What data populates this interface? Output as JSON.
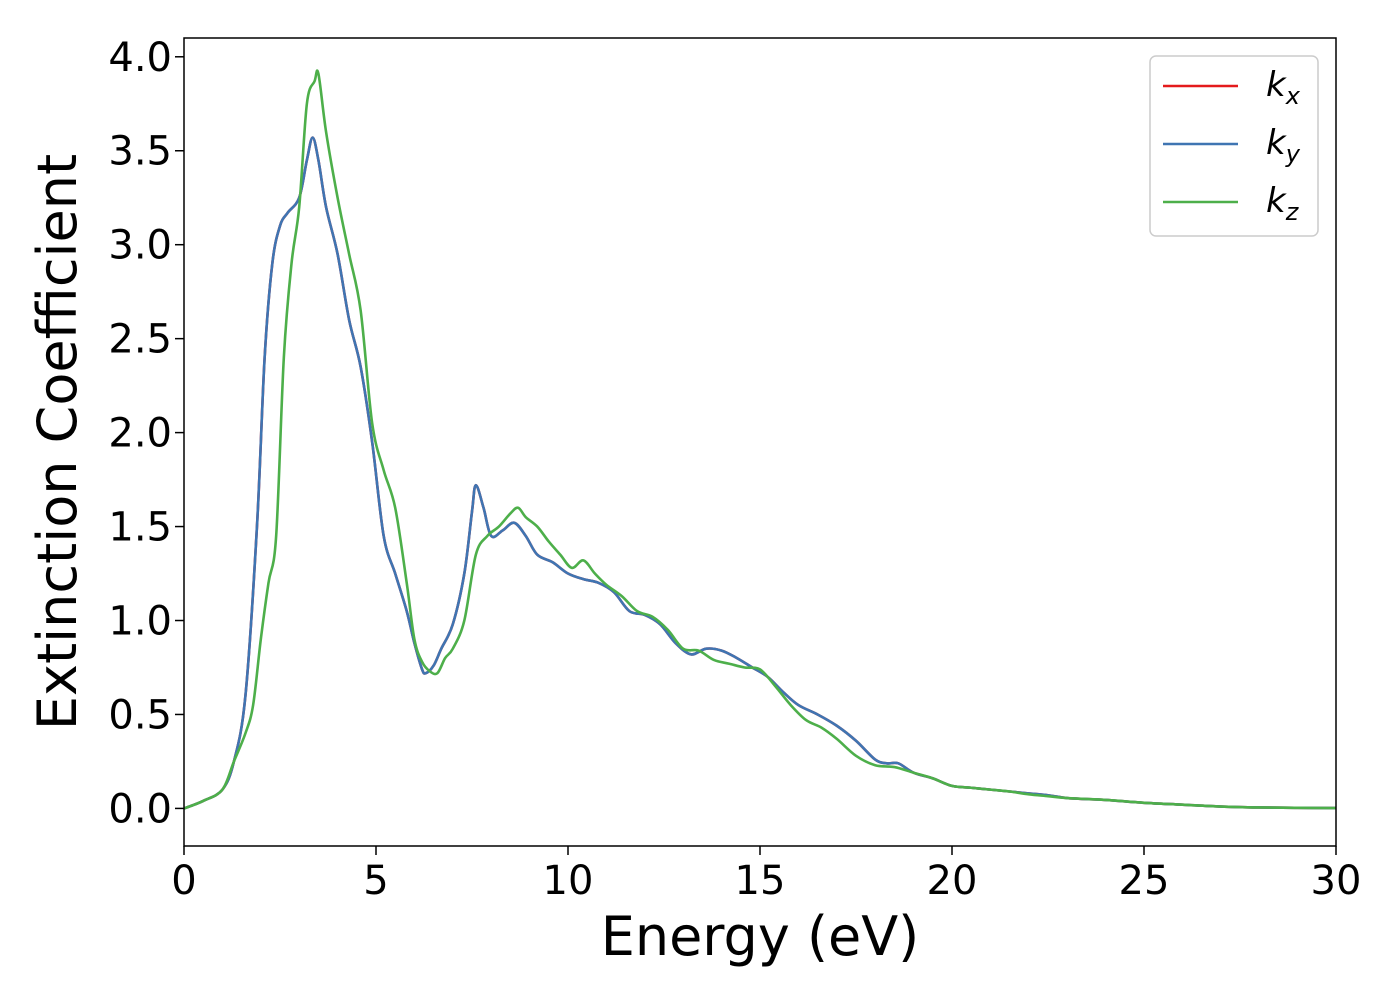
{
  "chart_data": {
    "type": "line",
    "title": "",
    "xlabel": "Energy (eV)",
    "ylabel": "Extinction Coefficient",
    "xlim": [
      0,
      30
    ],
    "ylim": [
      -0.2,
      4.1
    ],
    "xticks": [
      0,
      5,
      10,
      15,
      20,
      25,
      30
    ],
    "yticks": [
      0.0,
      0.5,
      1.0,
      1.5,
      2.0,
      2.5,
      3.0,
      3.5,
      4.0
    ],
    "grid": false,
    "legend_position": "top-right",
    "series": [
      {
        "name": "k_x",
        "legend_main": "k",
        "legend_sub": "x",
        "color": "#e41a1c",
        "x": [
          0,
          0.5,
          1.0,
          1.3,
          1.6,
          1.9,
          2.1,
          2.3,
          2.5,
          2.7,
          3.0,
          3.2,
          3.35,
          3.5,
          3.7,
          4.0,
          4.3,
          4.6,
          4.9,
          5.2,
          5.5,
          5.8,
          6.0,
          6.2,
          6.3,
          6.5,
          6.7,
          7.0,
          7.3,
          7.5,
          7.6,
          7.8,
          8.0,
          8.3,
          8.6,
          8.9,
          9.2,
          9.6,
          10.0,
          10.4,
          10.8,
          11.2,
          11.6,
          12.0,
          12.4,
          12.8,
          13.2,
          13.6,
          14.0,
          14.4,
          14.8,
          15.2,
          15.6,
          16.0,
          16.5,
          17.0,
          17.5,
          18.0,
          18.3,
          18.6,
          19.0,
          19.5,
          20.0,
          20.5,
          21.0,
          21.5,
          22.0,
          22.5,
          23.0,
          23.5,
          24.0,
          25.0,
          26.0,
          27.0,
          28.0,
          29.0,
          30.0
        ],
        "y": [
          0.0,
          0.04,
          0.1,
          0.25,
          0.6,
          1.5,
          2.4,
          2.9,
          3.1,
          3.17,
          3.25,
          3.45,
          3.57,
          3.45,
          3.2,
          2.95,
          2.6,
          2.35,
          1.95,
          1.45,
          1.25,
          1.05,
          0.88,
          0.74,
          0.72,
          0.76,
          0.85,
          0.98,
          1.25,
          1.58,
          1.72,
          1.6,
          1.45,
          1.48,
          1.52,
          1.45,
          1.35,
          1.31,
          1.25,
          1.22,
          1.2,
          1.15,
          1.05,
          1.03,
          0.98,
          0.88,
          0.82,
          0.85,
          0.84,
          0.8,
          0.75,
          0.7,
          0.62,
          0.55,
          0.5,
          0.44,
          0.36,
          0.26,
          0.24,
          0.24,
          0.19,
          0.16,
          0.12,
          0.11,
          0.1,
          0.09,
          0.08,
          0.07,
          0.055,
          0.05,
          0.045,
          0.03,
          0.02,
          0.01,
          0.005,
          0.003,
          0.002
        ]
      },
      {
        "name": "k_y",
        "legend_main": "k",
        "legend_sub": "y",
        "color": "#3f75b2",
        "x": [
          0,
          0.5,
          1.0,
          1.3,
          1.6,
          1.9,
          2.1,
          2.3,
          2.5,
          2.7,
          3.0,
          3.2,
          3.35,
          3.5,
          3.7,
          4.0,
          4.3,
          4.6,
          4.9,
          5.2,
          5.5,
          5.8,
          6.0,
          6.2,
          6.3,
          6.5,
          6.7,
          7.0,
          7.3,
          7.5,
          7.6,
          7.8,
          8.0,
          8.3,
          8.6,
          8.9,
          9.2,
          9.6,
          10.0,
          10.4,
          10.8,
          11.2,
          11.6,
          12.0,
          12.4,
          12.8,
          13.2,
          13.6,
          14.0,
          14.4,
          14.8,
          15.2,
          15.6,
          16.0,
          16.5,
          17.0,
          17.5,
          18.0,
          18.3,
          18.6,
          19.0,
          19.5,
          20.0,
          20.5,
          21.0,
          21.5,
          22.0,
          22.5,
          23.0,
          23.5,
          24.0,
          25.0,
          26.0,
          27.0,
          28.0,
          29.0,
          30.0
        ],
        "y": [
          0.0,
          0.04,
          0.1,
          0.25,
          0.6,
          1.5,
          2.4,
          2.9,
          3.1,
          3.17,
          3.25,
          3.45,
          3.57,
          3.45,
          3.2,
          2.95,
          2.6,
          2.35,
          1.95,
          1.45,
          1.25,
          1.05,
          0.88,
          0.74,
          0.72,
          0.76,
          0.85,
          0.98,
          1.25,
          1.58,
          1.72,
          1.6,
          1.45,
          1.48,
          1.52,
          1.45,
          1.35,
          1.31,
          1.25,
          1.22,
          1.2,
          1.15,
          1.05,
          1.03,
          0.98,
          0.88,
          0.82,
          0.85,
          0.84,
          0.8,
          0.75,
          0.7,
          0.62,
          0.55,
          0.5,
          0.44,
          0.36,
          0.26,
          0.24,
          0.24,
          0.19,
          0.16,
          0.12,
          0.11,
          0.1,
          0.09,
          0.08,
          0.07,
          0.055,
          0.05,
          0.045,
          0.03,
          0.02,
          0.01,
          0.005,
          0.003,
          0.002
        ]
      },
      {
        "name": "k_z",
        "legend_main": "k",
        "legend_sub": "z",
        "color": "#4daf4a",
        "x": [
          0,
          0.5,
          1.0,
          1.3,
          1.6,
          1.8,
          2.0,
          2.2,
          2.4,
          2.6,
          2.8,
          3.0,
          3.2,
          3.4,
          3.5,
          3.7,
          4.0,
          4.3,
          4.6,
          4.9,
          5.2,
          5.5,
          5.8,
          6.0,
          6.2,
          6.4,
          6.6,
          6.8,
          7.0,
          7.3,
          7.6,
          7.9,
          8.2,
          8.5,
          8.7,
          8.9,
          9.2,
          9.5,
          9.8,
          10.1,
          10.4,
          10.7,
          11.0,
          11.4,
          11.8,
          12.2,
          12.6,
          13.0,
          13.4,
          13.8,
          14.2,
          14.6,
          15.0,
          15.4,
          15.8,
          16.2,
          16.6,
          17.0,
          17.5,
          18.0,
          18.5,
          19.0,
          19.5,
          20.0,
          20.5,
          21.0,
          21.5,
          22.0,
          22.5,
          23.0,
          24.0,
          25.0,
          26.0,
          27.0,
          28.0,
          29.0,
          30.0
        ],
        "y": [
          0.0,
          0.04,
          0.1,
          0.25,
          0.4,
          0.55,
          0.9,
          1.2,
          1.45,
          2.4,
          2.9,
          3.2,
          3.75,
          3.87,
          3.91,
          3.6,
          3.25,
          2.95,
          2.65,
          2.05,
          1.8,
          1.6,
          1.2,
          0.9,
          0.78,
          0.73,
          0.72,
          0.8,
          0.85,
          1.0,
          1.35,
          1.45,
          1.5,
          1.57,
          1.6,
          1.55,
          1.5,
          1.42,
          1.35,
          1.28,
          1.32,
          1.25,
          1.19,
          1.13,
          1.05,
          1.02,
          0.95,
          0.85,
          0.84,
          0.79,
          0.77,
          0.75,
          0.74,
          0.65,
          0.55,
          0.47,
          0.43,
          0.37,
          0.28,
          0.23,
          0.22,
          0.19,
          0.16,
          0.12,
          0.11,
          0.1,
          0.09,
          0.075,
          0.065,
          0.055,
          0.045,
          0.03,
          0.02,
          0.01,
          0.005,
          0.003,
          0.002
        ]
      }
    ]
  }
}
